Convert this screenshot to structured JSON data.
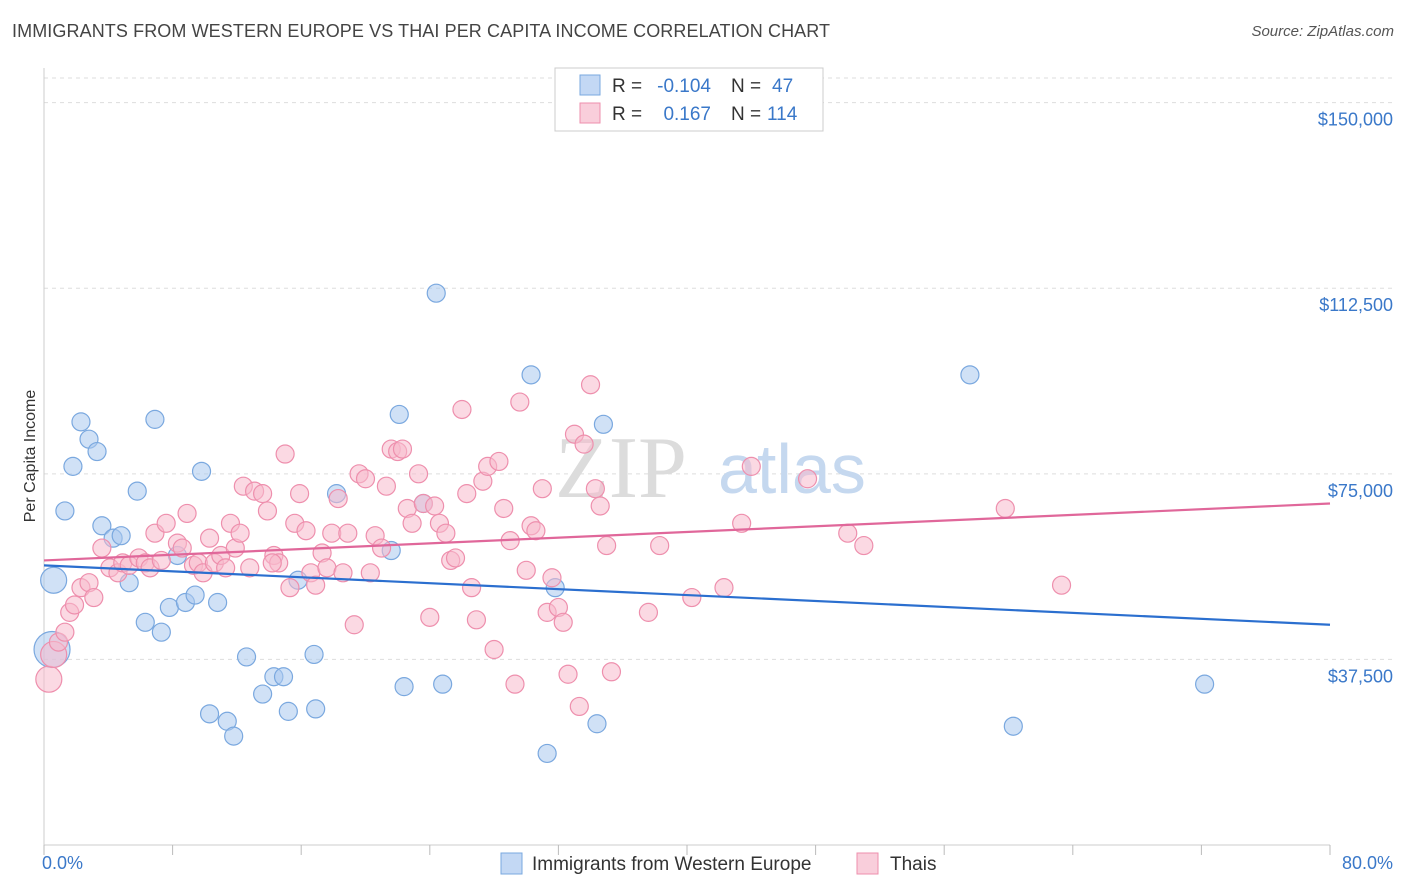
{
  "header": {
    "title": "IMMIGRANTS FROM WESTERN EUROPE VS THAI PER CAPITA INCOME CORRELATION CHART",
    "source": "Source: ZipAtlas.com"
  },
  "watermark": {
    "zip": "ZIP",
    "atlas": "atlas"
  },
  "chart_data": {
    "type": "scatter",
    "title": "IMMIGRANTS FROM WESTERN EUROPE VS THAI PER CAPITA INCOME CORRELATION CHART",
    "xlabel": "",
    "ylabel": "Per Capita Income",
    "xlim": [
      0,
      80
    ],
    "ylim": [
      0,
      157000
    ],
    "x_tick_labels": [
      "0.0%",
      "80.0%"
    ],
    "y_ticks": [
      37500,
      75000,
      112500,
      150000
    ],
    "y_tick_labels": [
      "$37,500",
      "$75,000",
      "$112,500",
      "$150,000"
    ],
    "grid": true,
    "legend_position": "bottom",
    "stats_box": [
      {
        "r_label": "R =",
        "r": "-0.104",
        "n_label": "N =",
        "n": "47"
      },
      {
        "r_label": "R =",
        "r": "0.167",
        "n_label": "N =",
        "n": "114"
      }
    ],
    "series": [
      {
        "name": "Immigrants from Western Europe",
        "color": "#a9c8ef",
        "stroke": "#7aa8df",
        "line_color": "#2b6fcf",
        "trend": [
          [
            0,
            56500
          ],
          [
            80,
            44500
          ]
        ],
        "points": [
          [
            0.5,
            39500,
            3
          ],
          [
            0.6,
            53500,
            2
          ],
          [
            1.3,
            67500,
            1
          ],
          [
            1.8,
            76500,
            1
          ],
          [
            2.3,
            85500,
            1
          ],
          [
            2.8,
            82000,
            1
          ],
          [
            3.3,
            79500,
            1
          ],
          [
            3.6,
            64500,
            1
          ],
          [
            4.3,
            62000,
            1
          ],
          [
            4.8,
            62500,
            1
          ],
          [
            5.3,
            53000,
            1
          ],
          [
            5.8,
            71500,
            1
          ],
          [
            6.3,
            45000,
            1
          ],
          [
            6.9,
            86000,
            1
          ],
          [
            7.3,
            43000,
            1
          ],
          [
            7.8,
            48000,
            1
          ],
          [
            8.3,
            58500,
            1
          ],
          [
            8.8,
            49000,
            1
          ],
          [
            9.4,
            50500,
            1
          ],
          [
            9.8,
            75500,
            1
          ],
          [
            10.3,
            26500,
            1
          ],
          [
            10.8,
            49000,
            1
          ],
          [
            11.4,
            25000,
            1
          ],
          [
            11.8,
            22000,
            1
          ],
          [
            12.6,
            38000,
            1
          ],
          [
            13.6,
            30500,
            1
          ],
          [
            14.3,
            34000,
            1
          ],
          [
            14.9,
            34000,
            1
          ],
          [
            15.2,
            27000,
            1
          ],
          [
            15.8,
            53500,
            1
          ],
          [
            16.8,
            38500,
            1
          ],
          [
            16.9,
            27500,
            1
          ],
          [
            18.2,
            71000,
            1
          ],
          [
            21.6,
            59500,
            1
          ],
          [
            22.1,
            87000,
            1
          ],
          [
            22.4,
            32000,
            1
          ],
          [
            23.6,
            69000,
            1
          ],
          [
            24.4,
            111500,
            1
          ],
          [
            24.8,
            32500,
            1
          ],
          [
            30.3,
            95000,
            1
          ],
          [
            31.3,
            18500,
            1
          ],
          [
            31.8,
            52000,
            1
          ],
          [
            34.4,
            24500,
            1
          ],
          [
            34.8,
            85000,
            1
          ],
          [
            57.6,
            95000,
            1
          ],
          [
            60.3,
            24000,
            1
          ],
          [
            72.2,
            32500,
            1
          ]
        ]
      },
      {
        "name": "Thais",
        "color": "#f7b9cc",
        "stroke": "#ee8fad",
        "line_color": "#e0679a",
        "trend": [
          [
            0,
            57500
          ],
          [
            80,
            69000
          ]
        ],
        "points": [
          [
            0.3,
            33500,
            2
          ],
          [
            0.6,
            38500,
            2
          ],
          [
            0.9,
            41000,
            1
          ],
          [
            1.3,
            43000,
            1
          ],
          [
            1.6,
            47000,
            1
          ],
          [
            1.9,
            48500,
            1
          ],
          [
            2.3,
            52000,
            1
          ],
          [
            2.8,
            53000,
            1
          ],
          [
            3.1,
            50000,
            1
          ],
          [
            3.6,
            60000,
            1
          ],
          [
            4.1,
            56000,
            1
          ],
          [
            4.6,
            55000,
            1
          ],
          [
            4.9,
            57000,
            1
          ],
          [
            5.3,
            56500,
            1
          ],
          [
            5.9,
            58000,
            1
          ],
          [
            6.3,
            57000,
            1
          ],
          [
            6.6,
            56000,
            1
          ],
          [
            6.9,
            63000,
            1
          ],
          [
            7.3,
            57500,
            1
          ],
          [
            7.6,
            65000,
            1
          ],
          [
            8.3,
            61000,
            1
          ],
          [
            8.6,
            60000,
            1
          ],
          [
            8.9,
            67000,
            1
          ],
          [
            9.3,
            56500,
            1
          ],
          [
            9.6,
            57000,
            1
          ],
          [
            9.9,
            55000,
            1
          ],
          [
            10.3,
            62000,
            1
          ],
          [
            10.6,
            57000,
            1
          ],
          [
            11.0,
            58500,
            1
          ],
          [
            11.3,
            56000,
            1
          ],
          [
            11.6,
            65000,
            1
          ],
          [
            11.9,
            60000,
            1
          ],
          [
            12.2,
            63000,
            1
          ],
          [
            12.4,
            72500,
            1
          ],
          [
            12.8,
            56000,
            1
          ],
          [
            13.1,
            71500,
            1
          ],
          [
            13.6,
            71000,
            1
          ],
          [
            13.9,
            67500,
            1
          ],
          [
            14.3,
            58500,
            1
          ],
          [
            14.6,
            57000,
            1
          ],
          [
            15.0,
            79000,
            1
          ],
          [
            15.3,
            52000,
            1
          ],
          [
            15.6,
            65000,
            1
          ],
          [
            15.9,
            71000,
            1
          ],
          [
            16.3,
            63500,
            1
          ],
          [
            16.6,
            55000,
            1
          ],
          [
            16.9,
            52500,
            1
          ],
          [
            17.3,
            59000,
            1
          ],
          [
            17.6,
            56000,
            1
          ],
          [
            17.9,
            63000,
            1
          ],
          [
            18.3,
            70000,
            1
          ],
          [
            18.6,
            55000,
            1
          ],
          [
            18.9,
            63000,
            1
          ],
          [
            19.3,
            44500,
            1
          ],
          [
            19.6,
            75000,
            1
          ],
          [
            20.0,
            74000,
            1
          ],
          [
            20.3,
            55000,
            1
          ],
          [
            20.6,
            62500,
            1
          ],
          [
            21.0,
            60000,
            1
          ],
          [
            21.3,
            72500,
            1
          ],
          [
            21.6,
            80000,
            1
          ],
          [
            22.0,
            79500,
            1
          ],
          [
            22.3,
            80000,
            1
          ],
          [
            22.6,
            68000,
            1
          ],
          [
            22.9,
            65000,
            1
          ],
          [
            23.3,
            75000,
            1
          ],
          [
            23.6,
            69000,
            1
          ],
          [
            24.0,
            46000,
            1
          ],
          [
            24.3,
            68500,
            1
          ],
          [
            24.6,
            65000,
            1
          ],
          [
            25.0,
            63000,
            1
          ],
          [
            25.3,
            57500,
            1
          ],
          [
            25.6,
            58000,
            1
          ],
          [
            26.0,
            88000,
            1
          ],
          [
            26.3,
            71000,
            1
          ],
          [
            26.6,
            52000,
            1
          ],
          [
            26.9,
            45500,
            1
          ],
          [
            27.3,
            73500,
            1
          ],
          [
            27.6,
            76500,
            1
          ],
          [
            28.0,
            39500,
            1
          ],
          [
            28.3,
            77500,
            1
          ],
          [
            28.6,
            68000,
            1
          ],
          [
            29.0,
            61500,
            1
          ],
          [
            29.3,
            32500,
            1
          ],
          [
            29.6,
            89500,
            1
          ],
          [
            30.0,
            55500,
            1
          ],
          [
            30.3,
            64500,
            1
          ],
          [
            30.6,
            63500,
            1
          ],
          [
            31.0,
            72000,
            1
          ],
          [
            31.3,
            47000,
            1
          ],
          [
            31.6,
            54000,
            1
          ],
          [
            32.0,
            48000,
            1
          ],
          [
            32.3,
            45000,
            1
          ],
          [
            32.6,
            34500,
            1
          ],
          [
            33.0,
            83000,
            1
          ],
          [
            33.3,
            28000,
            1
          ],
          [
            33.6,
            81000,
            1
          ],
          [
            34.0,
            93000,
            1
          ],
          [
            34.3,
            72000,
            1
          ],
          [
            34.6,
            68500,
            1
          ],
          [
            35.0,
            60500,
            1
          ],
          [
            35.3,
            35000,
            1
          ],
          [
            37.6,
            47000,
            1
          ],
          [
            38.3,
            60500,
            1
          ],
          [
            40.3,
            50000,
            1
          ],
          [
            42.3,
            52000,
            1
          ],
          [
            43.4,
            65000,
            1
          ],
          [
            44.0,
            76500,
            1
          ],
          [
            47.5,
            74000,
            1
          ],
          [
            50.0,
            63000,
            1
          ],
          [
            51.0,
            60500,
            1
          ],
          [
            63.3,
            52500,
            1
          ],
          [
            59.8,
            68000,
            1
          ],
          [
            14.2,
            57000,
            1
          ]
        ]
      }
    ]
  }
}
